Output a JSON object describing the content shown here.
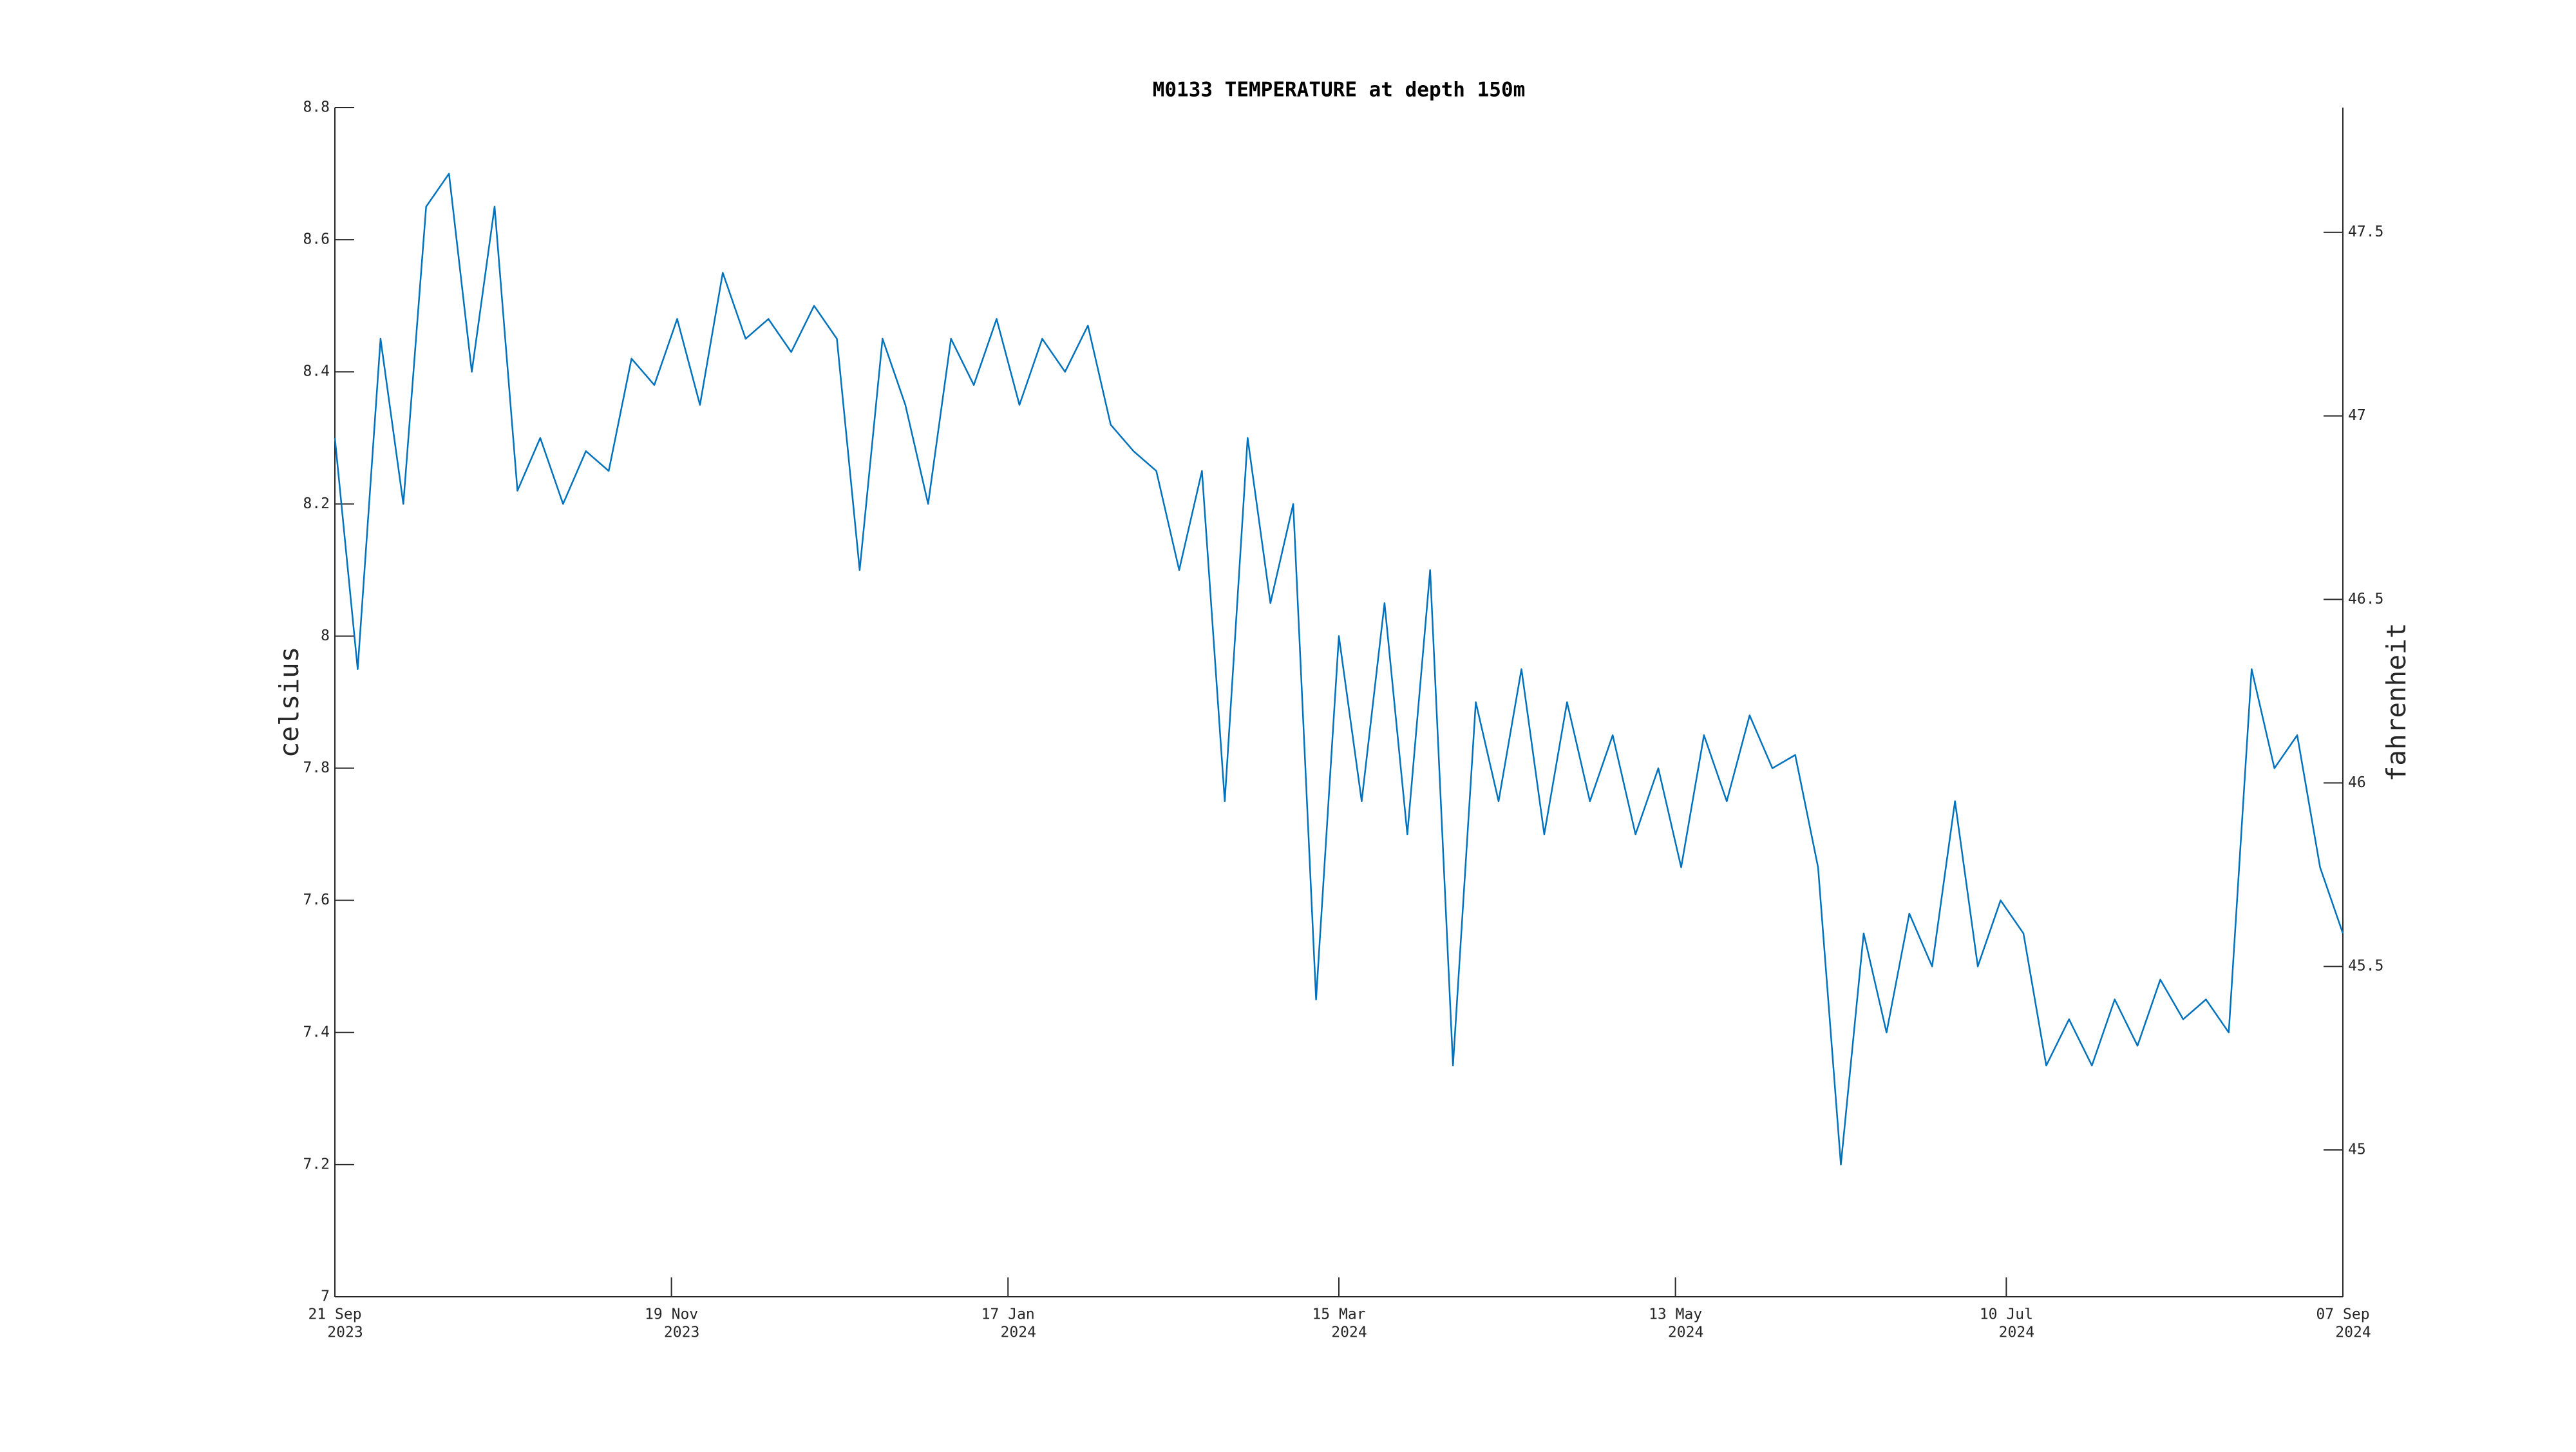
{
  "chart_data": {
    "type": "line",
    "title": "M0133 TEMPERATURE at depth 150m",
    "ylabel": "celsius",
    "y2label": "fahrenheit",
    "color": "#0072bd",
    "x": [
      "2023-09-21",
      "2023-09-25",
      "2023-09-29",
      "2023-10-03",
      "2023-10-07",
      "2023-10-11",
      "2023-10-15",
      "2023-10-19",
      "2023-10-23",
      "2023-10-27",
      "2023-10-31",
      "2023-11-04",
      "2023-11-08",
      "2023-11-12",
      "2023-11-16",
      "2023-11-20",
      "2023-11-24",
      "2023-11-28",
      "2023-12-02",
      "2023-12-06",
      "2023-12-10",
      "2023-12-14",
      "2023-12-18",
      "2023-12-22",
      "2023-12-26",
      "2023-12-30",
      "2024-01-03",
      "2024-01-07",
      "2024-01-11",
      "2024-01-15",
      "2024-01-19",
      "2024-01-23",
      "2024-01-27",
      "2024-01-31",
      "2024-02-04",
      "2024-02-08",
      "2024-02-12",
      "2024-02-16",
      "2024-02-20",
      "2024-02-24",
      "2024-02-28",
      "2024-03-03",
      "2024-03-07",
      "2024-03-11",
      "2024-03-15",
      "2024-03-19",
      "2024-03-23",
      "2024-03-27",
      "2024-03-31",
      "2024-04-04",
      "2024-04-08",
      "2024-04-12",
      "2024-04-16",
      "2024-04-20",
      "2024-04-24",
      "2024-04-28",
      "2024-05-02",
      "2024-05-06",
      "2024-05-10",
      "2024-05-14",
      "2024-05-18",
      "2024-05-22",
      "2024-05-26",
      "2024-05-30",
      "2024-06-03",
      "2024-06-07",
      "2024-06-11",
      "2024-06-15",
      "2024-06-19",
      "2024-06-23",
      "2024-06-27",
      "2024-07-01",
      "2024-07-05",
      "2024-07-09",
      "2024-07-13",
      "2024-07-17",
      "2024-07-21",
      "2024-07-25",
      "2024-07-29",
      "2024-08-02",
      "2024-08-06",
      "2024-08-10",
      "2024-08-14",
      "2024-08-18",
      "2024-08-22",
      "2024-08-26",
      "2024-08-30",
      "2024-09-03",
      "2024-09-07"
    ],
    "values": [
      8.3,
      7.95,
      8.45,
      8.2,
      8.65,
      8.7,
      8.4,
      8.65,
      8.22,
      8.3,
      8.2,
      8.28,
      8.25,
      8.42,
      8.38,
      8.48,
      8.35,
      8.55,
      8.45,
      8.48,
      8.43,
      8.5,
      8.45,
      8.1,
      8.45,
      8.35,
      8.2,
      8.45,
      8.38,
      8.48,
      8.35,
      8.45,
      8.4,
      8.47,
      8.32,
      8.28,
      8.25,
      8.1,
      8.25,
      7.75,
      8.3,
      8.05,
      8.2,
      7.45,
      8.0,
      7.75,
      8.05,
      7.7,
      8.1,
      7.35,
      7.9,
      7.75,
      7.95,
      7.7,
      7.9,
      7.75,
      7.85,
      7.7,
      7.8,
      7.65,
      7.85,
      7.75,
      7.88,
      7.8,
      7.82,
      7.65,
      7.2,
      7.55,
      7.4,
      7.58,
      7.5,
      7.75,
      7.5,
      7.6,
      7.55,
      7.35,
      7.42,
      7.35,
      7.45,
      7.38,
      7.48,
      7.42,
      7.45,
      7.4,
      7.95,
      7.8,
      7.85,
      7.65,
      7.55
    ],
    "xlim": [
      "2023-09-21",
      "2024-09-07"
    ],
    "xticks": [
      {
        "value": "2023-09-21",
        "label": [
          "21 Sep",
          "2023"
        ]
      },
      {
        "value": "2023-11-19",
        "label": [
          "19 Nov",
          "2023"
        ]
      },
      {
        "value": "2024-01-17",
        "label": [
          "17 Jan",
          "2024"
        ]
      },
      {
        "value": "2024-03-15",
        "label": [
          "15 Mar",
          "2024"
        ]
      },
      {
        "value": "2024-05-13",
        "label": [
          "13 May",
          "2024"
        ]
      },
      {
        "value": "2024-07-10",
        "label": [
          "10 Jul",
          "2024"
        ]
      },
      {
        "value": "2024-09-07",
        "label": [
          "07 Sep",
          "2024"
        ]
      }
    ],
    "ylim": [
      7,
      8.8
    ],
    "yticks": [
      7,
      7.2,
      7.4,
      7.6,
      7.8,
      8,
      8.2,
      8.4,
      8.6,
      8.8
    ],
    "y2lim": [
      44.6,
      47.84
    ],
    "y2ticks": [
      45,
      45.5,
      46,
      46.5,
      47,
      47.5
    ]
  }
}
